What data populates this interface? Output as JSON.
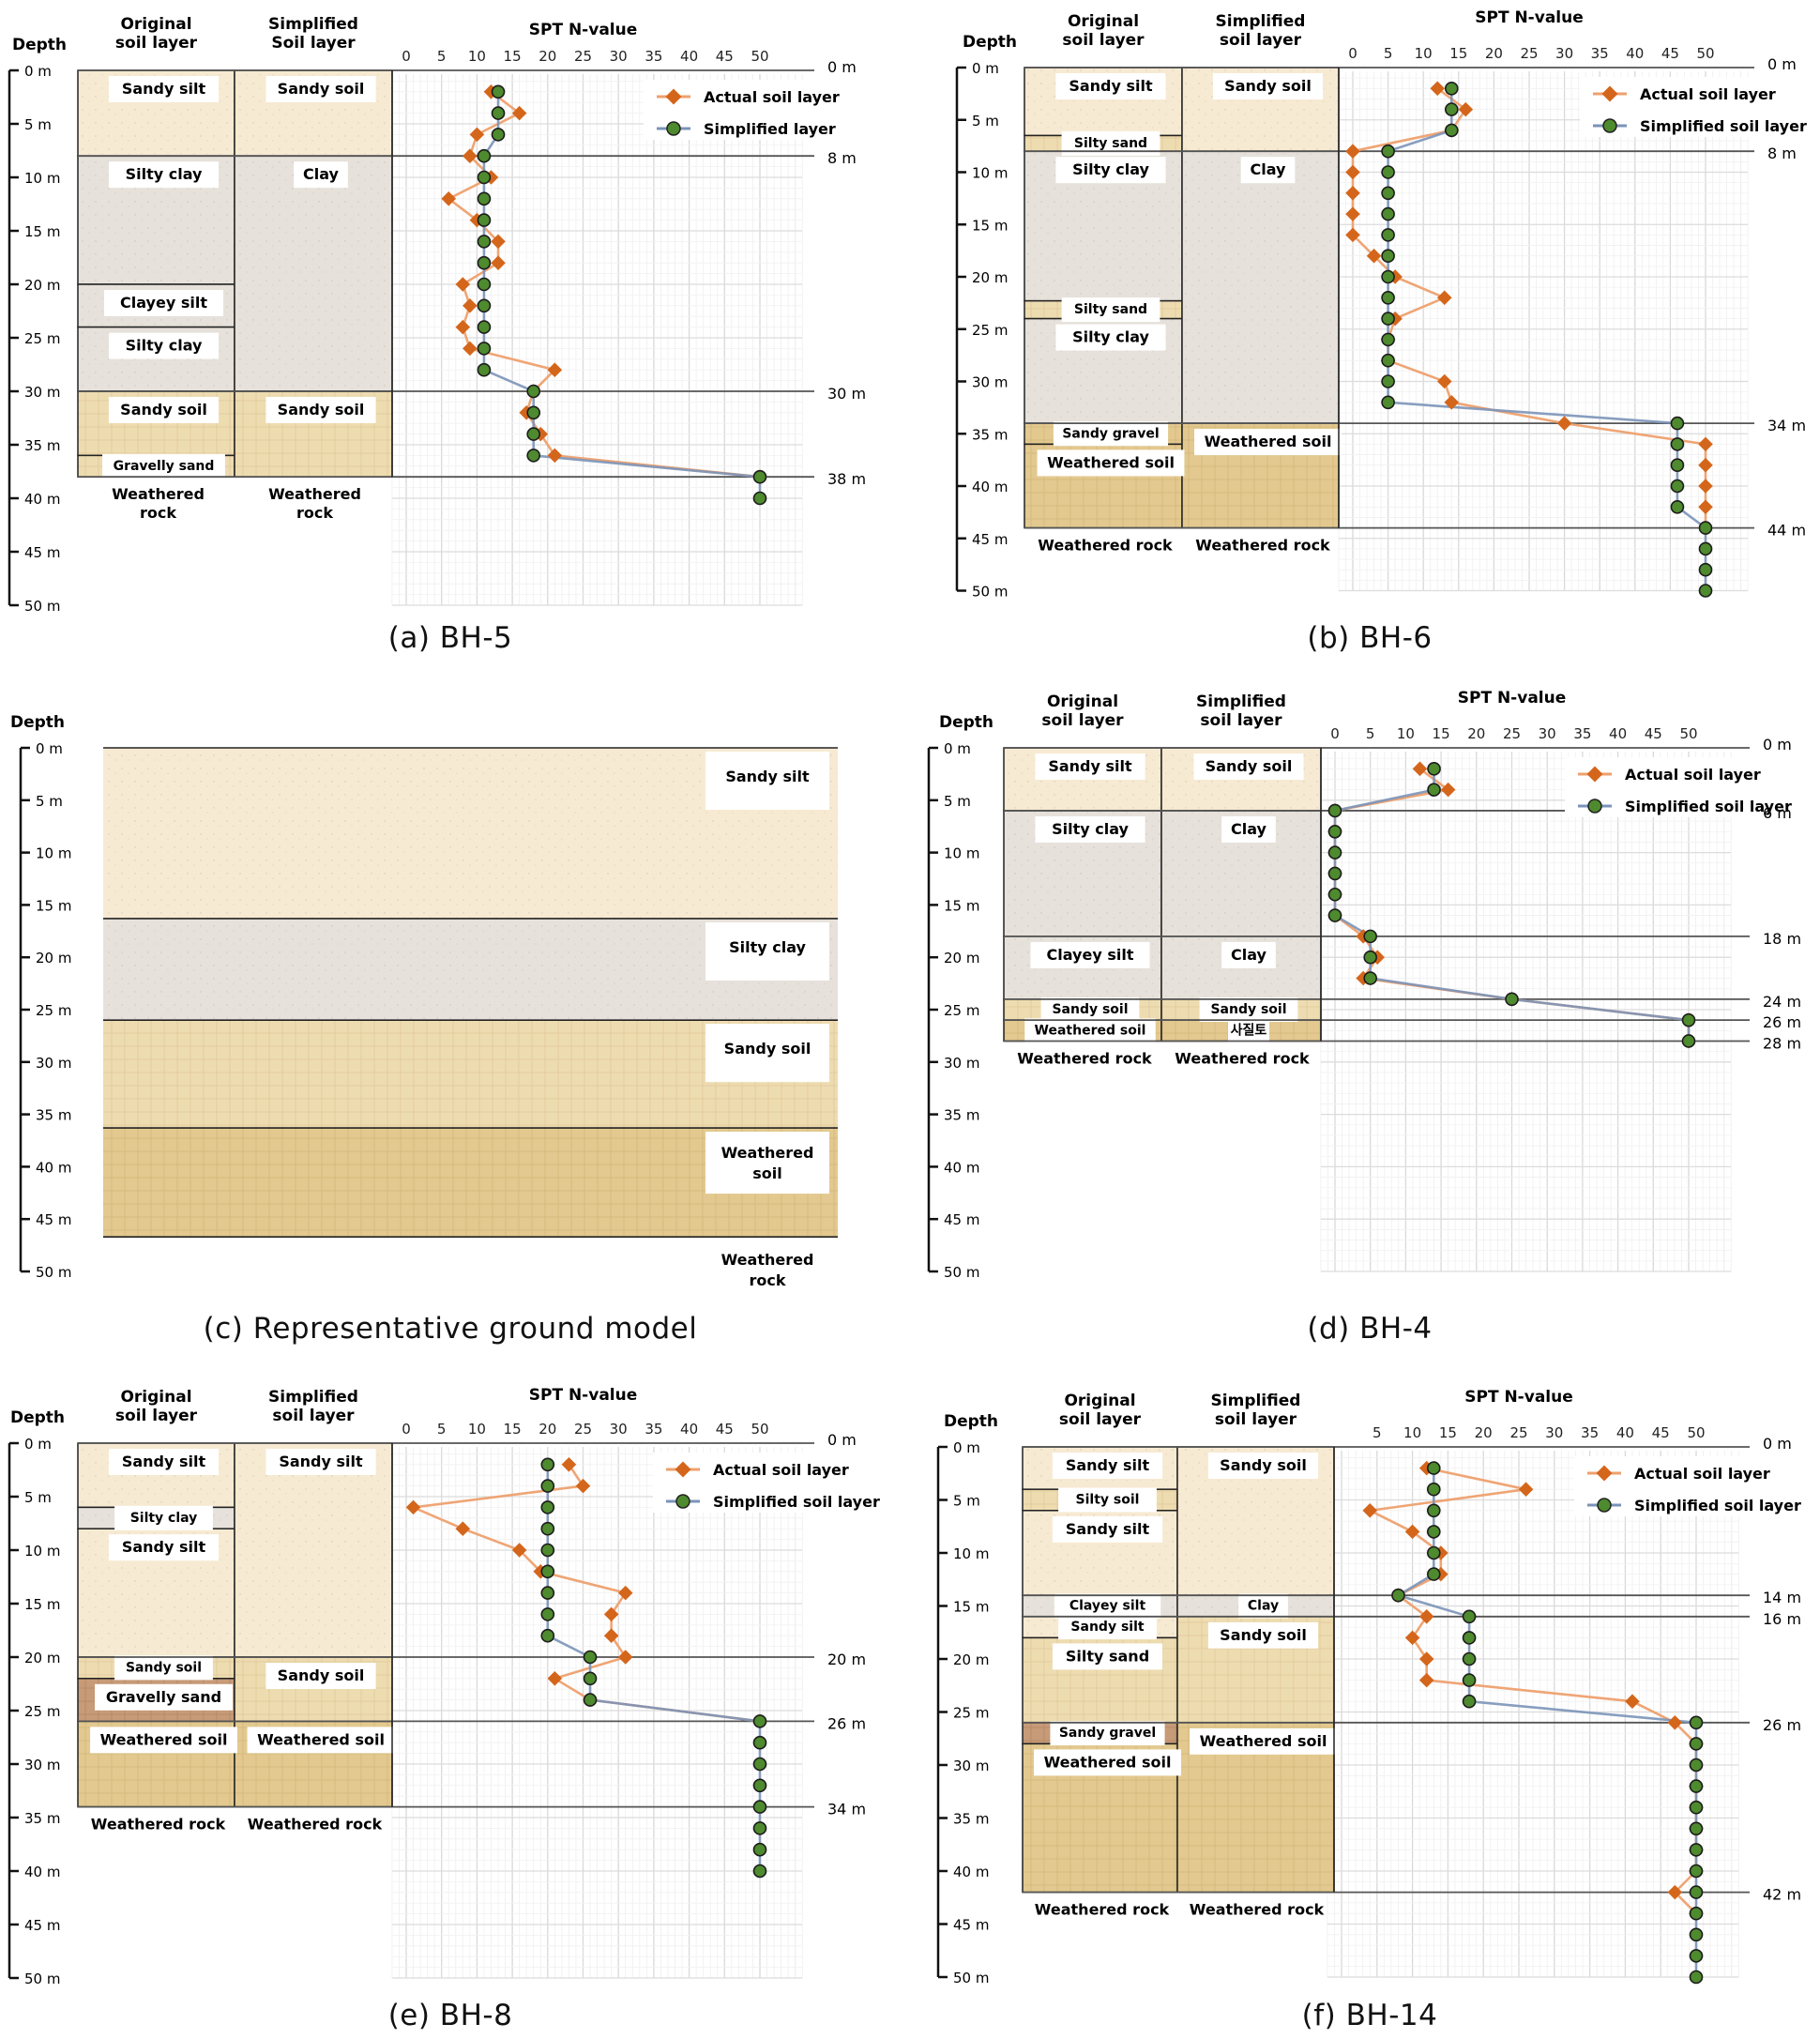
{
  "common": {
    "depth_label": "Depth",
    "original_header": [
      "Original",
      "soil layer"
    ],
    "simplified_header": [
      "Simplified",
      "soil layer"
    ],
    "spt_title": "SPT N-value",
    "legend_actual": "Actual soil layer",
    "legend_simplified": "Simplified soil layer",
    "depth_ticks": [
      "0 m",
      "5 m",
      "10 m",
      "15 m",
      "20 m",
      "25 m",
      "30 m",
      "35 m",
      "40 m",
      "45 m",
      "50 m"
    ],
    "colors": {
      "actual": "#d4661c",
      "actual_line": "#eea06e",
      "simplified": "#4e8a2e",
      "simplified_line": "#7b93b8",
      "sandy_silt": "#f7ead2",
      "clay": "#e6e1da",
      "sandy": "#eedcb1",
      "weathered": "#e3c98f",
      "gravel": "#c79a78"
    }
  },
  "chart_data": [
    {
      "id": "a",
      "type": "line",
      "title": "(a) BH-5",
      "xlabel": "SPT N-value",
      "ylabel": "Depth",
      "xlim": [
        0,
        50
      ],
      "ylim": [
        0,
        50
      ],
      "x_ticks": [
        "0",
        "5",
        "10",
        "15",
        "20",
        "25",
        "30",
        "35",
        "40",
        "45",
        "50"
      ],
      "simplified_header": [
        "Simplified",
        "Soil layer"
      ],
      "legend_simplified": "Simplified layer",
      "original_layers": [
        {
          "name": "Sandy silt",
          "top": 0,
          "bottom": 8,
          "soil": "sandy_silt"
        },
        {
          "name": "Silty clay",
          "top": 8,
          "bottom": 20,
          "soil": "clay"
        },
        {
          "name": "Clayey silt",
          "top": 20,
          "bottom": 24,
          "soil": "clay"
        },
        {
          "name": "Silty clay",
          "top": 24,
          "bottom": 30,
          "soil": "clay"
        },
        {
          "name": "Sandy soil",
          "top": 30,
          "bottom": 36,
          "soil": "sandy"
        },
        {
          "name": "Gravelly sand",
          "top": 36,
          "bottom": 38,
          "soil": "sandy"
        }
      ],
      "simplified_layers": [
        {
          "name": "Sandy soil",
          "top": 0,
          "bottom": 8,
          "soil": "sandy_silt"
        },
        {
          "name": "Clay",
          "top": 8,
          "bottom": 30,
          "soil": "clay"
        },
        {
          "name": "Sandy soil",
          "top": 30,
          "bottom": 38,
          "soil": "sandy"
        }
      ],
      "base_label": [
        "Weathered",
        "rock"
      ],
      "boundaries": [
        0,
        8,
        30,
        38
      ],
      "boundary_labels": [
        "0 m",
        "8 m",
        "30 m",
        "38 m"
      ],
      "series": [
        {
          "name": "Actual soil layer",
          "depth": [
            2,
            4,
            6,
            8,
            10,
            12,
            14,
            16,
            18,
            20,
            22,
            24,
            26,
            28,
            30,
            32,
            34,
            36,
            38
          ],
          "values": [
            12,
            16,
            10,
            9,
            12,
            6,
            10,
            13,
            13,
            8,
            9,
            8,
            9,
            21,
            18,
            17,
            19,
            21,
            50
          ]
        },
        {
          "name": "Simplified layer",
          "depth": [
            2,
            4,
            6,
            8,
            10,
            12,
            14,
            16,
            18,
            20,
            22,
            24,
            26,
            28,
            30,
            32,
            34,
            36,
            38,
            40
          ],
          "values": [
            13,
            13,
            13,
            11,
            11,
            11,
            11,
            11,
            11,
            11,
            11,
            11,
            11,
            11,
            18,
            18,
            18,
            18,
            50,
            50
          ]
        }
      ],
      "legend": "top-right"
    },
    {
      "id": "b",
      "type": "line",
      "title": "(b) BH-6",
      "xlabel": "SPT N-value",
      "ylabel": "Depth",
      "xlim": [
        0,
        50
      ],
      "ylim": [
        0,
        50
      ],
      "x_ticks": [
        "0",
        "5",
        "10",
        "15",
        "20",
        "25",
        "30",
        "35",
        "40",
        "45",
        "50"
      ],
      "original_layers": [
        {
          "name": "Sandy silt",
          "top": 0,
          "bottom": 6.5,
          "soil": "sandy_silt"
        },
        {
          "name": "Silty sand",
          "top": 6.5,
          "bottom": 8,
          "soil": "sandy"
        },
        {
          "name": "Silty clay",
          "top": 8,
          "bottom": 22.3,
          "soil": "clay"
        },
        {
          "name": "Silty sand",
          "top": 22.3,
          "bottom": 24,
          "soil": "sandy"
        },
        {
          "name": "Silty clay",
          "top": 24,
          "bottom": 34,
          "soil": "clay"
        },
        {
          "name": "Sandy gravel",
          "top": 34,
          "bottom": 36,
          "soil": "weathered"
        },
        {
          "name": "Weathered soil",
          "top": 36,
          "bottom": 44,
          "soil": "weathered"
        }
      ],
      "simplified_layers": [
        {
          "name": "Sandy soil",
          "top": 0,
          "bottom": 8,
          "soil": "sandy_silt"
        },
        {
          "name": "Clay",
          "top": 8,
          "bottom": 34,
          "soil": "clay"
        },
        {
          "name": "Weathered soil",
          "top": 34,
          "bottom": 44,
          "soil": "weathered"
        }
      ],
      "base_label": [
        "Weathered rock"
      ],
      "boundaries": [
        0,
        8,
        34,
        44
      ],
      "boundary_labels": [
        "0 m",
        "8 m",
        "34 m",
        "44 m"
      ],
      "series": [
        {
          "name": "Actual soil layer",
          "depth": [
            2,
            4,
            6,
            8,
            10,
            12,
            14,
            16,
            18,
            20,
            22,
            24,
            26,
            28,
            30,
            32,
            34,
            36,
            38,
            40,
            42,
            44
          ],
          "values": [
            12,
            16,
            14,
            0,
            0,
            0,
            0,
            0,
            3,
            6,
            13,
            6,
            5,
            5,
            13,
            14,
            30,
            50,
            50,
            50,
            50,
            50
          ]
        },
        {
          "name": "Simplified soil layer",
          "depth": [
            2,
            4,
            6,
            8,
            10,
            12,
            14,
            16,
            18,
            20,
            22,
            24,
            26,
            28,
            30,
            32,
            34,
            36,
            38,
            40,
            42,
            44,
            46,
            48,
            50
          ],
          "values": [
            14,
            14,
            14,
            5,
            5,
            5,
            5,
            5,
            5,
            5,
            5,
            5,
            5,
            5,
            5,
            5,
            46,
            46,
            46,
            46,
            46,
            50,
            50,
            50,
            50
          ]
        }
      ],
      "legend": "top-right"
    },
    {
      "id": "c",
      "type": "table",
      "title": "(c) Representative ground model",
      "ylabel": "Depth",
      "ylim": [
        0,
        50
      ],
      "layers": [
        {
          "name": [
            "Sandy silt"
          ],
          "top": 0,
          "bottom": 16.3,
          "soil": "sandy_silt"
        },
        {
          "name": [
            "Silty clay"
          ],
          "top": 16.3,
          "bottom": 26,
          "soil": "clay"
        },
        {
          "name": [
            "Sandy soil"
          ],
          "top": 26,
          "bottom": 36.3,
          "soil": "sandy"
        },
        {
          "name": [
            "Weathered",
            "soil"
          ],
          "top": 36.3,
          "bottom": 46.7,
          "soil": "weathered"
        }
      ],
      "base_label": [
        "Weathered",
        "rock"
      ]
    },
    {
      "id": "d",
      "type": "line",
      "title": "(d) BH-4",
      "xlabel": "SPT N-value",
      "ylabel": "Depth",
      "xlim": [
        0,
        50
      ],
      "ylim": [
        0,
        50
      ],
      "x_ticks": [
        "0",
        "5",
        "10",
        "15",
        "20",
        "25",
        "30",
        "35",
        "40",
        "45",
        "50"
      ],
      "original_layers": [
        {
          "name": "Sandy silt",
          "top": 0,
          "bottom": 6,
          "soil": "sandy_silt"
        },
        {
          "name": "Silty clay",
          "top": 6,
          "bottom": 18,
          "soil": "clay"
        },
        {
          "name": "Clayey silt",
          "top": 18,
          "bottom": 24,
          "soil": "clay"
        },
        {
          "name": "Sandy soil",
          "top": 24,
          "bottom": 26,
          "soil": "sandy"
        },
        {
          "name": "Weathered soil",
          "top": 26,
          "bottom": 28,
          "soil": "weathered"
        }
      ],
      "simplified_layers": [
        {
          "name": "Sandy soil",
          "top": 0,
          "bottom": 6,
          "soil": "sandy_silt"
        },
        {
          "name": "Clay",
          "top": 6,
          "bottom": 18,
          "soil": "clay"
        },
        {
          "name": "Clay",
          "top": 18,
          "bottom": 24,
          "soil": "clay"
        },
        {
          "name": "Sandy soil",
          "top": 24,
          "bottom": 26,
          "soil": "sandy"
        },
        {
          "name": "사질토",
          "top": 26,
          "bottom": 28,
          "soil": "weathered"
        }
      ],
      "base_label": [
        "Weathered rock"
      ],
      "boundaries": [
        0,
        6,
        18,
        24,
        26,
        28
      ],
      "boundary_labels": [
        "0 m",
        "6 m",
        "18 m",
        "24 m",
        "26 m",
        "28 m"
      ],
      "series": [
        {
          "name": "Actual soil layer",
          "depth": [
            2,
            4,
            6,
            8,
            10,
            12,
            14,
            16,
            18,
            20,
            22,
            24,
            26,
            28
          ],
          "values": [
            12,
            16,
            0,
            0,
            0,
            0,
            0,
            0,
            4,
            6,
            4,
            25,
            50,
            50
          ]
        },
        {
          "name": "Simplified soil layer",
          "depth": [
            2,
            4,
            6,
            8,
            10,
            12,
            14,
            16,
            18,
            20,
            22,
            24,
            26,
            28
          ],
          "values": [
            14,
            14,
            0,
            0,
            0,
            0,
            0,
            0,
            5,
            5,
            5,
            25,
            50,
            50
          ]
        }
      ],
      "legend": "top-right"
    },
    {
      "id": "e",
      "type": "line",
      "title": "(e) BH-8",
      "xlabel": "SPT N-value",
      "ylabel": "Depth",
      "xlim": [
        0,
        50
      ],
      "ylim": [
        0,
        50
      ],
      "x_ticks": [
        "0",
        "5",
        "10",
        "15",
        "20",
        "25",
        "30",
        "35",
        "40",
        "45",
        "50"
      ],
      "original_layers": [
        {
          "name": "Sandy silt",
          "top": 0,
          "bottom": 6,
          "soil": "sandy_silt"
        },
        {
          "name": "Silty clay",
          "top": 6,
          "bottom": 8,
          "soil": "clay"
        },
        {
          "name": "Sandy silt",
          "top": 8,
          "bottom": 20,
          "soil": "sandy_silt"
        },
        {
          "name": "Sandy soil",
          "top": 20,
          "bottom": 22,
          "soil": "sandy"
        },
        {
          "name": "Gravelly sand",
          "top": 22,
          "bottom": 26,
          "soil": "gravel"
        },
        {
          "name": "Weathered soil",
          "top": 26,
          "bottom": 34,
          "soil": "weathered"
        }
      ],
      "simplified_layers": [
        {
          "name": "Sandy silt",
          "top": 0,
          "bottom": 20,
          "soil": "sandy_silt"
        },
        {
          "name": "Sandy soil",
          "top": 20,
          "bottom": 26,
          "soil": "sandy"
        },
        {
          "name": "Weathered soil",
          "top": 26,
          "bottom": 34,
          "soil": "weathered"
        }
      ],
      "base_label": [
        "Weathered rock"
      ],
      "boundaries": [
        0,
        20,
        26,
        34
      ],
      "boundary_labels": [
        "0 m",
        "20 m",
        "26 m",
        "34 m"
      ],
      "series": [
        {
          "name": "Actual soil layer",
          "depth": [
            2,
            4,
            6,
            8,
            10,
            12,
            14,
            16,
            18,
            20,
            22,
            24,
            26
          ],
          "values": [
            23,
            25,
            1,
            8,
            16,
            19,
            31,
            29,
            29,
            31,
            21,
            26,
            50
          ]
        },
        {
          "name": "Simplified soil layer",
          "depth": [
            2,
            4,
            6,
            8,
            10,
            12,
            14,
            16,
            18,
            20,
            22,
            24,
            26,
            28,
            30,
            32,
            34,
            36,
            38,
            40
          ],
          "values": [
            20,
            20,
            20,
            20,
            20,
            20,
            20,
            20,
            20,
            26,
            26,
            26,
            50,
            50,
            50,
            50,
            50,
            50,
            50,
            50
          ]
        }
      ],
      "legend": "top-right"
    },
    {
      "id": "f",
      "type": "line",
      "title": "(f) BH-14",
      "xlabel": "SPT N-value",
      "ylabel": "Depth",
      "xlim": [
        0,
        50
      ],
      "ylim": [
        0,
        50
      ],
      "x_ticks": [
        "",
        "5",
        "10",
        "15",
        "20",
        "25",
        "30",
        "35",
        "40",
        "45",
        "50"
      ],
      "original_layers": [
        {
          "name": "Sandy silt",
          "top": 0,
          "bottom": 4,
          "soil": "sandy_silt"
        },
        {
          "name": "Silty soil",
          "top": 4,
          "bottom": 6,
          "soil": "sandy"
        },
        {
          "name": "Sandy silt",
          "top": 6,
          "bottom": 14,
          "soil": "sandy_silt"
        },
        {
          "name": "Clayey silt",
          "top": 14,
          "bottom": 16,
          "soil": "clay"
        },
        {
          "name": "Sandy silt",
          "top": 16,
          "bottom": 18,
          "soil": "sandy_silt"
        },
        {
          "name": "Silty sand",
          "top": 18,
          "bottom": 26,
          "soil": "sandy"
        },
        {
          "name": "Sandy gravel",
          "top": 26,
          "bottom": 28,
          "soil": "gravel"
        },
        {
          "name": "Weathered soil",
          "top": 28,
          "bottom": 42,
          "soil": "weathered"
        }
      ],
      "simplified_layers": [
        {
          "name": "Sandy soil",
          "top": 0,
          "bottom": 14,
          "soil": "sandy_silt"
        },
        {
          "name": "Clay",
          "top": 14,
          "bottom": 16,
          "soil": "clay"
        },
        {
          "name": "Sandy soil",
          "top": 16,
          "bottom": 26,
          "soil": "sandy"
        },
        {
          "name": "Weathered soil",
          "top": 26,
          "bottom": 42,
          "soil": "weathered"
        }
      ],
      "base_label": [
        "Weathered rock"
      ],
      "boundaries": [
        0,
        14,
        16,
        26,
        42
      ],
      "boundary_labels": [
        "0 m",
        "14 m",
        "16 m",
        "26 m",
        "42 m"
      ],
      "series": [
        {
          "name": "Actual soil layer",
          "depth": [
            2,
            4,
            6,
            8,
            10,
            12,
            14,
            16,
            18,
            20,
            22,
            24,
            26,
            28,
            30,
            32,
            34,
            36,
            38,
            40,
            42,
            44
          ],
          "values": [
            12,
            26,
            4,
            10,
            14,
            14,
            8,
            12,
            10,
            12,
            12,
            41,
            47,
            50,
            50,
            50,
            50,
            50,
            50,
            50,
            47,
            50
          ]
        },
        {
          "name": "Simplified soil layer",
          "depth": [
            2,
            4,
            6,
            8,
            10,
            12,
            14,
            16,
            18,
            20,
            22,
            24,
            26,
            28,
            30,
            32,
            34,
            36,
            38,
            40,
            42,
            44,
            46,
            48,
            50
          ],
          "values": [
            13,
            13,
            13,
            13,
            13,
            13,
            8,
            18,
            18,
            18,
            18,
            18,
            50,
            50,
            50,
            50,
            50,
            50,
            50,
            50,
            50,
            50,
            50,
            50,
            50
          ]
        }
      ],
      "legend": "top-right"
    }
  ]
}
